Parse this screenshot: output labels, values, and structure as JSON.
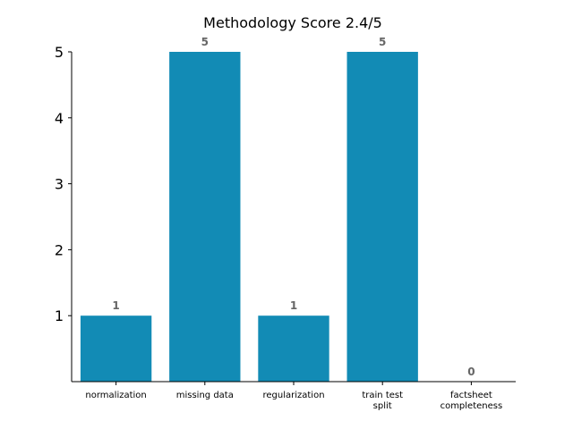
{
  "colors": {
    "bar": "#128bb5",
    "data_label": "#666666"
  },
  "chart_data": {
    "type": "bar",
    "title": "Methodology Score 2.4/5",
    "xlabel": "",
    "ylabel": "",
    "categories": [
      [
        "normalization"
      ],
      [
        "missing data"
      ],
      [
        "regularization"
      ],
      [
        "train test",
        "split"
      ],
      [
        "factsheet",
        "completeness"
      ]
    ],
    "values": [
      1,
      5,
      1,
      5,
      0
    ],
    "data_labels": [
      "1",
      "5",
      "1",
      "5",
      "0"
    ],
    "ylim": [
      0,
      5
    ],
    "yticks": [
      1,
      2,
      3,
      4,
      5
    ],
    "ytick_labels": [
      "1",
      "2",
      "3",
      "4",
      "5"
    ],
    "grid": false
  }
}
